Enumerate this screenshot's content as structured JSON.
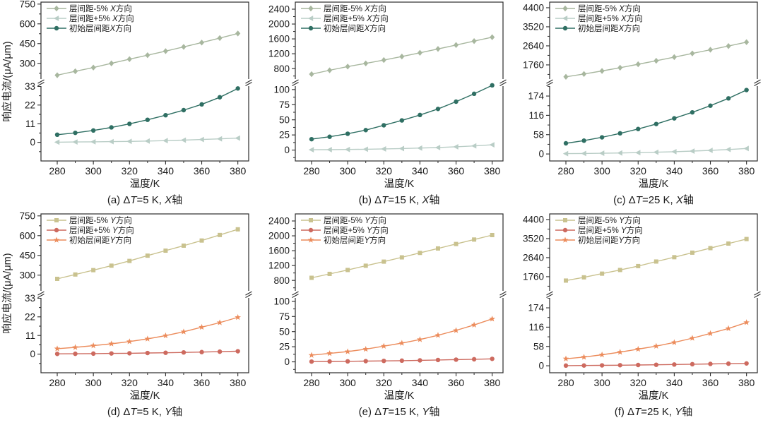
{
  "figure": {
    "ylabel": "响应电流/(μA/μm)",
    "xlabel": "温度/K",
    "x_values": [
      280,
      290,
      300,
      310,
      320,
      330,
      340,
      350,
      360,
      370,
      380
    ],
    "x_major_ticks": [
      280,
      300,
      320,
      340,
      360,
      380
    ],
    "x_minor_ticks": [
      290,
      310,
      330,
      350,
      370
    ],
    "x_range": [
      271,
      386
    ],
    "frame_color": "#2b2b2b",
    "text_color": "#1a1a1a"
  },
  "chart_data": [
    {
      "id": "a",
      "type": "line",
      "caption": "(a) ΔT=5 K, X轴",
      "show_ylabel": true,
      "top_axis": {
        "range": [
          170,
          765
        ],
        "ticks": [
          300,
          450,
          600,
          750
        ]
      },
      "bottom_axis": {
        "range": [
          -11,
          34
        ],
        "ticks": [
          0,
          11,
          22,
          33
        ]
      },
      "series": [
        {
          "name": "层间距-5% X方向",
          "marker": "diamond",
          "color": "#a8b79f",
          "segment": "top",
          "values": [
            210,
            240,
            268,
            300,
            332,
            362,
            393,
            425,
            458,
            492,
            527
          ]
        },
        {
          "name": "层间距+5% X方向",
          "marker": "triangle-left",
          "color": "#b9cdc6",
          "segment": "bottom",
          "values": [
            0.1,
            0.2,
            0.3,
            0.4,
            0.55,
            0.75,
            1.0,
            1.3,
            1.65,
            2.05,
            2.5
          ]
        },
        {
          "name": "初始层间距X方向",
          "marker": "circle",
          "color": "#2f6f63",
          "segment": "bottom",
          "values": [
            4.5,
            5.6,
            7.0,
            8.8,
            10.9,
            13.3,
            16.0,
            19.0,
            22.4,
            26.6,
            31.8
          ]
        }
      ]
    },
    {
      "id": "b",
      "type": "line",
      "caption": "(b) ΔT=15 K, X轴",
      "show_ylabel": false,
      "top_axis": {
        "range": [
          480,
          2590
        ],
        "ticks": [
          800,
          1200,
          1600,
          2000,
          2400
        ]
      },
      "bottom_axis": {
        "range": [
          -18,
          108
        ],
        "ticks": [
          0,
          25,
          50,
          75,
          100
        ]
      },
      "series": [
        {
          "name": "层间距-5% X方向",
          "marker": "diamond",
          "color": "#a8b79f",
          "segment": "top",
          "values": [
            650,
            755,
            855,
            940,
            1030,
            1125,
            1225,
            1330,
            1435,
            1540,
            1645
          ]
        },
        {
          "name": "层间距+5% X方向",
          "marker": "triangle-left",
          "color": "#b9cdc6",
          "segment": "bottom",
          "values": [
            0.5,
            0.7,
            1.0,
            1.4,
            1.9,
            2.5,
            3.3,
            4.2,
            5.4,
            6.9,
            8.7
          ]
        },
        {
          "name": "初始层间距X方向",
          "marker": "circle",
          "color": "#2f6f63",
          "segment": "bottom",
          "values": [
            18,
            22,
            27,
            33,
            41,
            49,
            58,
            68,
            80,
            93,
            107
          ]
        }
      ]
    },
    {
      "id": "c",
      "type": "line",
      "caption": "(c) ΔT=25 K, X轴",
      "show_ylabel": false,
      "top_axis": {
        "range": [
          1040,
          4660
        ],
        "ticks": [
          1760,
          2640,
          3520,
          4400
        ]
      },
      "bottom_axis": {
        "range": [
          -21,
          208
        ],
        "ticks": [
          0,
          58,
          116,
          174
        ]
      },
      "series": [
        {
          "name": "层间距-5% X方向",
          "marker": "diamond",
          "color": "#a8b79f",
          "segment": "top",
          "values": [
            1210,
            1340,
            1480,
            1630,
            1790,
            1950,
            2120,
            2290,
            2460,
            2630,
            2810
          ]
        },
        {
          "name": "层间距+5% X方向",
          "marker": "triangle-left",
          "color": "#b9cdc6",
          "segment": "bottom",
          "values": [
            1,
            1.5,
            2.2,
            3,
            4,
            5.3,
            6.8,
            8.6,
            10.8,
            13.4,
            16.5
          ]
        },
        {
          "name": "初始层间距X方向",
          "marker": "circle",
          "color": "#2f6f63",
          "segment": "bottom",
          "values": [
            32,
            40,
            50,
            62,
            75,
            90,
            107,
            125,
            145,
            167,
            192
          ]
        }
      ]
    },
    {
      "id": "d",
      "type": "line",
      "caption": "(d) ΔT=5 K, Y轴",
      "show_ylabel": true,
      "top_axis": {
        "range": [
          170,
          765
        ],
        "ticks": [
          300,
          450,
          600,
          750
        ]
      },
      "bottom_axis": {
        "range": [
          -11,
          34
        ],
        "ticks": [
          0,
          11,
          22,
          33
        ]
      },
      "series": [
        {
          "name": "层间距-5% Y方向",
          "marker": "square",
          "color": "#c9c28f",
          "segment": "top",
          "values": [
            272,
            305,
            338,
            372,
            408,
            448,
            486,
            524,
            563,
            605,
            648
          ]
        },
        {
          "name": "层间距+5% Y方向",
          "marker": "circle",
          "color": "#cd6a5f",
          "segment": "bottom",
          "values": [
            0.15,
            0.2,
            0.3,
            0.4,
            0.5,
            0.65,
            0.8,
            1.0,
            1.2,
            1.45,
            1.7
          ]
        },
        {
          "name": "初始层间距Y方向",
          "marker": "star",
          "color": "#ec8c5c",
          "segment": "bottom",
          "values": [
            3.2,
            4.0,
            5.0,
            6.1,
            7.4,
            9.0,
            10.9,
            13.2,
            15.9,
            18.6,
            21.7
          ]
        }
      ]
    },
    {
      "id": "e",
      "type": "line",
      "caption": "(e) ΔT=15 K, Y轴",
      "show_ylabel": false,
      "top_axis": {
        "range": [
          480,
          2590
        ],
        "ticks": [
          800,
          1200,
          1600,
          2000,
          2400
        ]
      },
      "bottom_axis": {
        "range": [
          -18,
          108
        ],
        "ticks": [
          0,
          25,
          50,
          75,
          100
        ]
      },
      "series": [
        {
          "name": "层间距-5% Y方向",
          "marker": "square",
          "color": "#c9c28f",
          "segment": "top",
          "values": [
            870,
            975,
            1080,
            1195,
            1305,
            1420,
            1540,
            1660,
            1780,
            1900,
            2020
          ]
        },
        {
          "name": "层间距+5% Y方向",
          "marker": "circle",
          "color": "#cd6a5f",
          "segment": "bottom",
          "values": [
            0.5,
            0.7,
            0.9,
            1.2,
            1.6,
            2.0,
            2.5,
            3.1,
            3.7,
            4.3,
            5.0
          ]
        },
        {
          "name": "初始层间距Y方向",
          "marker": "star",
          "color": "#ec8c5c",
          "segment": "bottom",
          "values": [
            11,
            14,
            17,
            21,
            26,
            31,
            37,
            44,
            52,
            61,
            71
          ]
        }
      ]
    },
    {
      "id": "f",
      "type": "line",
      "caption": "(f) ΔT=25 K, Y轴",
      "show_ylabel": false,
      "top_axis": {
        "range": [
          1040,
          4660
        ],
        "ticks": [
          1760,
          2640,
          3520,
          4400
        ]
      },
      "bottom_axis": {
        "range": [
          -21,
          208
        ],
        "ticks": [
          0,
          58,
          116,
          174
        ]
      },
      "series": [
        {
          "name": "层间距-5% Y方向",
          "marker": "square",
          "color": "#c9c28f",
          "segment": "top",
          "values": [
            1580,
            1730,
            1900,
            2070,
            2250,
            2460,
            2660,
            2870,
            3080,
            3290,
            3500
          ]
        },
        {
          "name": "层间距+5% Y方向",
          "marker": "circle",
          "color": "#cd6a5f",
          "segment": "bottom",
          "values": [
            0.5,
            0.8,
            1.2,
            1.7,
            2.3,
            3.0,
            3.8,
            4.7,
            5.6,
            6.3,
            7.0
          ]
        },
        {
          "name": "初始层间距Y方向",
          "marker": "star",
          "color": "#ec8c5c",
          "segment": "bottom",
          "values": [
            21,
            26,
            33,
            41,
            50,
            59,
            70,
            83,
            97,
            112,
            130
          ]
        }
      ]
    }
  ]
}
